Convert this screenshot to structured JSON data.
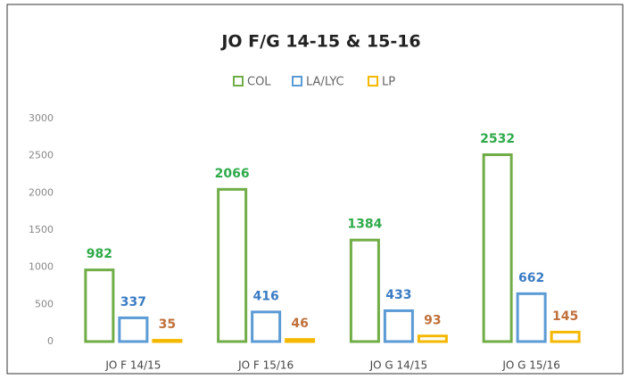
{
  "chart_data": {
    "type": "bar",
    "title": "JO F/G 14-15 & 15-16",
    "categories": [
      "JO F 14/15",
      "JO F 15/16",
      "JO G 14/15",
      "JO G 15/16"
    ],
    "series": [
      {
        "name": "COL",
        "color": "#70ad47",
        "label_color": "#2eaa4a",
        "values": [
          982,
          2066,
          1384,
          2532
        ]
      },
      {
        "name": "LA/LYC",
        "color": "#5b9bd5",
        "label_color": "#3a7cc4",
        "values": [
          337,
          416,
          433,
          662
        ]
      },
      {
        "name": "LP",
        "color": "#f5b800",
        "label_color": "#c0703a",
        "values": [
          35,
          46,
          93,
          145
        ]
      }
    ],
    "ylim": [
      0,
      3000
    ],
    "yticks": [
      0,
      500,
      1000,
      1500,
      2000,
      2500,
      3000
    ],
    "grid": false,
    "legend": "top"
  }
}
